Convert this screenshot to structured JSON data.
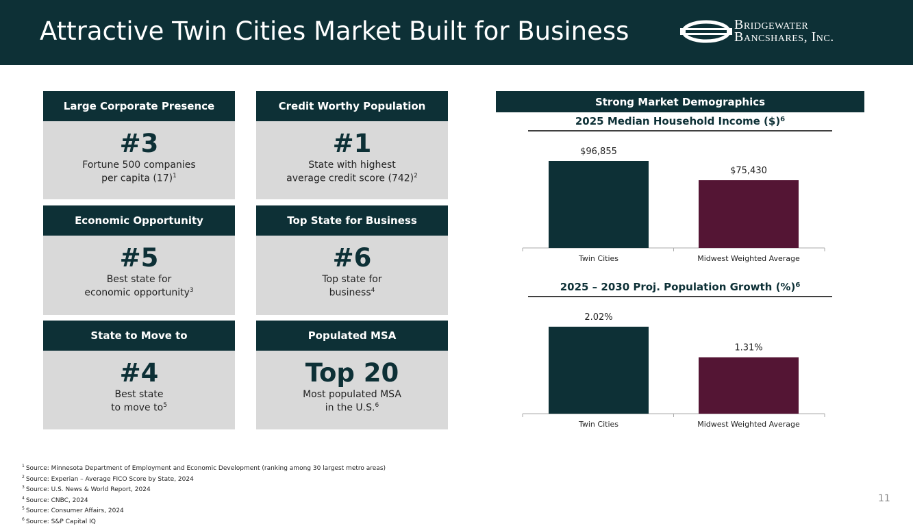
{
  "header": {
    "title": "Attractive Twin Cities Market Built for Business",
    "logo_lines": [
      "Bridgewater",
      "Bancshares, Inc."
    ]
  },
  "cards": [
    {
      "title": "Large Corporate Presence",
      "rank": "#3",
      "lines": [
        "Fortune 500 companies",
        "per capita (17)"
      ],
      "sup": "1"
    },
    {
      "title": "Credit Worthy Population",
      "rank": "#1",
      "lines": [
        "State with highest",
        "average credit score (742)"
      ],
      "sup": "2"
    },
    {
      "title": "Economic Opportunity",
      "rank": "#5",
      "lines": [
        "Best state for",
        "economic opportunity"
      ],
      "sup": "3"
    },
    {
      "title": "Top State for Business",
      "rank": "#6",
      "lines": [
        "Top state for",
        "business"
      ],
      "sup": "4"
    },
    {
      "title": "State to Move to",
      "rank": "#4",
      "lines": [
        "Best state",
        "to move to"
      ],
      "sup": "5"
    },
    {
      "title": "Populated MSA",
      "rank": "Top 20",
      "lines": [
        "Most populated MSA",
        "in the U.S."
      ],
      "sup": "6"
    }
  ],
  "demographics_title": "Strong Market Demographics",
  "chart_data": [
    {
      "type": "bar",
      "title": "2025 Median Household Income ($)",
      "title_sup": "6",
      "categories": [
        "Twin Cities",
        "Midwest Weighted Average"
      ],
      "values": [
        96855,
        75430
      ],
      "value_labels": [
        "$96,855",
        "$75,430"
      ],
      "colors": [
        "#0d3036",
        "#541534"
      ]
    },
    {
      "type": "bar",
      "title": "2025 – 2030 Proj. Population Growth (%)",
      "title_sup": "6",
      "categories": [
        "Twin Cities",
        "Midwest Weighted Average"
      ],
      "values": [
        2.02,
        1.31
      ],
      "value_labels": [
        "2.02%",
        "1.31%"
      ],
      "colors": [
        "#0d3036",
        "#541534"
      ]
    }
  ],
  "footnotes": [
    {
      "marker": "1",
      "text": "Source: Minnesota Department of Employment and Economic Development (ranking among 30 largest metro areas)"
    },
    {
      "marker": "2",
      "text": "Source: Experian – Average FICO Score by State, 2024"
    },
    {
      "marker": "3",
      "text": "Source: U.S. News & World Report, 2024"
    },
    {
      "marker": "4",
      "text": "Source: CNBC, 2024"
    },
    {
      "marker": "5",
      "text": "Source: Consumer Affairs, 2024"
    },
    {
      "marker": "6",
      "text": "Source: S&P Capital IQ"
    }
  ],
  "page_number": "11"
}
